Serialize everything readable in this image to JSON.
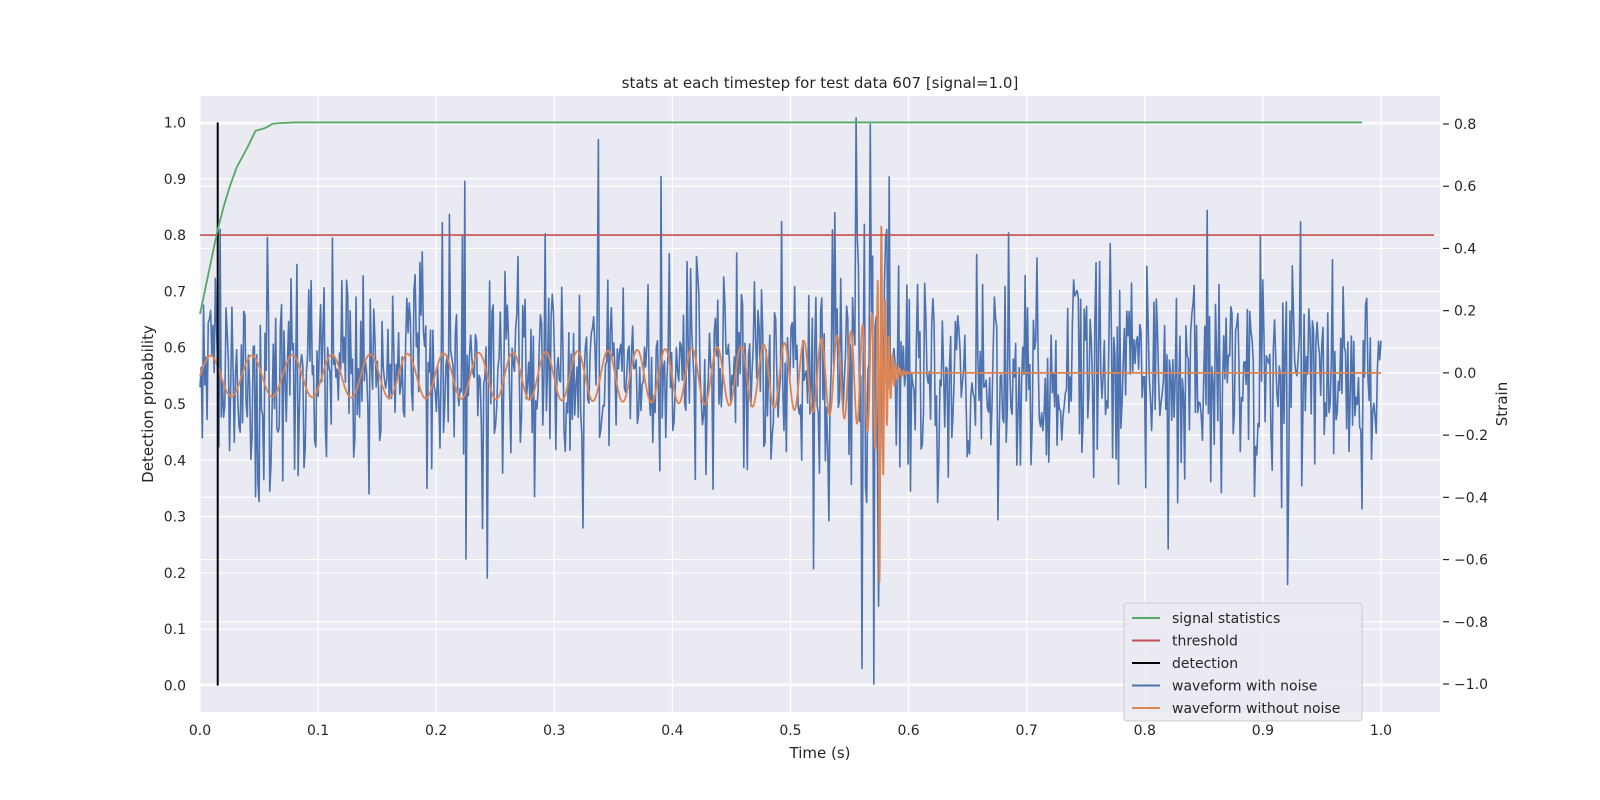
{
  "chart_data": {
    "type": "line",
    "title": "stats at each timestep for test data 607 [signal=1.0]",
    "xlabel": "Time (s)",
    "ylabel_left": "Detection probability",
    "ylabel_right": "Strain",
    "xlim": [
      0.0,
      1.05
    ],
    "ylim_left": [
      -0.047,
      1.047
    ],
    "ylim_right": [
      -1.09,
      0.89
    ],
    "x_ticks": [
      0.0,
      0.1,
      0.2,
      0.3,
      0.4,
      0.5,
      0.6,
      0.7,
      0.8,
      0.9,
      1.0
    ],
    "x_tick_labels": [
      "0.0",
      "0.1",
      "0.2",
      "0.3",
      "0.4",
      "0.5",
      "0.6",
      "0.7",
      "0.8",
      "0.9",
      "1.0"
    ],
    "y_left_ticks": [
      0.0,
      0.1,
      0.2,
      0.3,
      0.4,
      0.5,
      0.6,
      0.7,
      0.8,
      0.9,
      1.0
    ],
    "y_left_tick_labels": [
      "0.0",
      "0.1",
      "0.2",
      "0.3",
      "0.4",
      "0.5",
      "0.6",
      "0.7",
      "0.8",
      "0.9",
      "1.0"
    ],
    "y_right_ticks": [
      -1.0,
      -0.8,
      -0.6,
      -0.4,
      -0.2,
      0.0,
      0.2,
      0.4,
      0.6,
      0.8
    ],
    "y_right_tick_labels": [
      "−1.0",
      "−0.8",
      "−0.6",
      "−0.4",
      "−0.2",
      "0.0",
      "0.2",
      "0.4",
      "0.6",
      "0.8"
    ],
    "grid": true,
    "legend_position": "lower-right",
    "colors": {
      "signal_statistics": "#55a868",
      "threshold": "#c44e52",
      "detection": "#000000",
      "waveform_with_noise": "#4c72b0",
      "waveform_without_noise": "#dd8452",
      "plot_background": "#eaeaf2",
      "grid": "#ffffff"
    },
    "series": [
      {
        "name": "signal statistics",
        "axis": "left",
        "x": [
          0.0,
          0.005,
          0.01,
          0.015,
          0.02,
          0.025,
          0.031,
          0.04,
          0.047,
          0.055,
          0.062,
          0.07,
          0.08,
          0.1,
          0.2,
          0.4,
          0.6,
          0.8,
          0.984
        ],
        "y": [
          0.66,
          0.71,
          0.76,
          0.81,
          0.85,
          0.885,
          0.92,
          0.955,
          0.985,
          0.99,
          0.998,
          0.999,
          1.0,
          1.0,
          1.0,
          1.0,
          1.0,
          1.0,
          1.0
        ]
      },
      {
        "name": "threshold",
        "axis": "left",
        "x": [
          0.0,
          1.045
        ],
        "y": [
          0.8,
          0.8
        ]
      },
      {
        "name": "detection",
        "axis": "left",
        "x": [
          0.015,
          0.015
        ],
        "y": [
          0.0,
          1.0
        ]
      },
      {
        "name": "waveform with noise",
        "axis": "right",
        "generated": "noise",
        "x_range": [
          0.0,
          1.0
        ],
        "n_points": 1000,
        "std": 0.19,
        "seed": 607,
        "extremes": [
          {
            "x": 0.556,
            "y": 0.82
          },
          {
            "x": 0.568,
            "y": 0.8
          },
          {
            "x": 0.561,
            "y": -0.95
          },
          {
            "x": 0.571,
            "y": -1.0
          },
          {
            "x": 0.575,
            "y": -0.75
          },
          {
            "x": 0.921,
            "y": -0.68
          },
          {
            "x": 0.337,
            "y": 0.75
          }
        ]
      },
      {
        "name": "waveform without noise",
        "axis": "right",
        "generated": "chirp",
        "x_range": [
          0.0,
          1.0
        ],
        "merger_time": 0.575,
        "start_amplitude": 0.065,
        "peak_amplitude": 0.74,
        "start_frequency": 28
      }
    ]
  }
}
